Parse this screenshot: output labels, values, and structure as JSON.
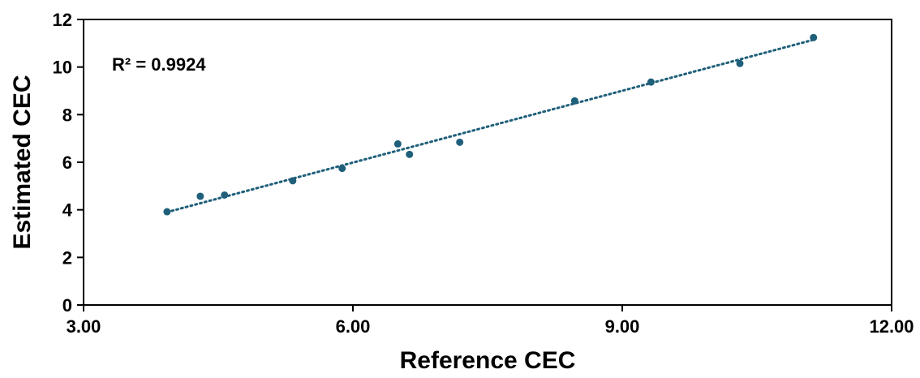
{
  "chart_data": {
    "type": "scatter",
    "title": "",
    "xlabel": "Reference CEC",
    "ylabel": "Estimated CEC",
    "xlim": [
      3.0,
      12.0
    ],
    "ylim": [
      0,
      12
    ],
    "x_ticks": [
      "3.00",
      "6.00",
      "9.00",
      "12.00"
    ],
    "y_ticks": [
      "0",
      "2",
      "4",
      "6",
      "8",
      "10",
      "12"
    ],
    "x_tick_values": [
      3,
      6,
      9,
      12
    ],
    "y_tick_values": [
      0,
      2,
      4,
      6,
      8,
      10,
      12
    ],
    "grid": false,
    "legend": "none",
    "annotation": "R² = 0.9924",
    "series": [
      {
        "color": "#1f5f7a",
        "trendline": {
          "type": "linear",
          "style": "dotted",
          "slope": 1.006,
          "intercept": -0.05
        },
        "points": [
          {
            "x": 3.93,
            "y": 3.92
          },
          {
            "x": 4.3,
            "y": 4.57
          },
          {
            "x": 4.57,
            "y": 4.62
          },
          {
            "x": 5.33,
            "y": 5.22
          },
          {
            "x": 5.88,
            "y": 5.74
          },
          {
            "x": 6.5,
            "y": 6.77
          },
          {
            "x": 6.63,
            "y": 6.33
          },
          {
            "x": 7.19,
            "y": 6.84
          },
          {
            "x": 8.47,
            "y": 8.58
          },
          {
            "x": 9.32,
            "y": 9.37
          },
          {
            "x": 10.31,
            "y": 10.15
          },
          {
            "x": 11.13,
            "y": 11.24
          }
        ]
      }
    ]
  }
}
